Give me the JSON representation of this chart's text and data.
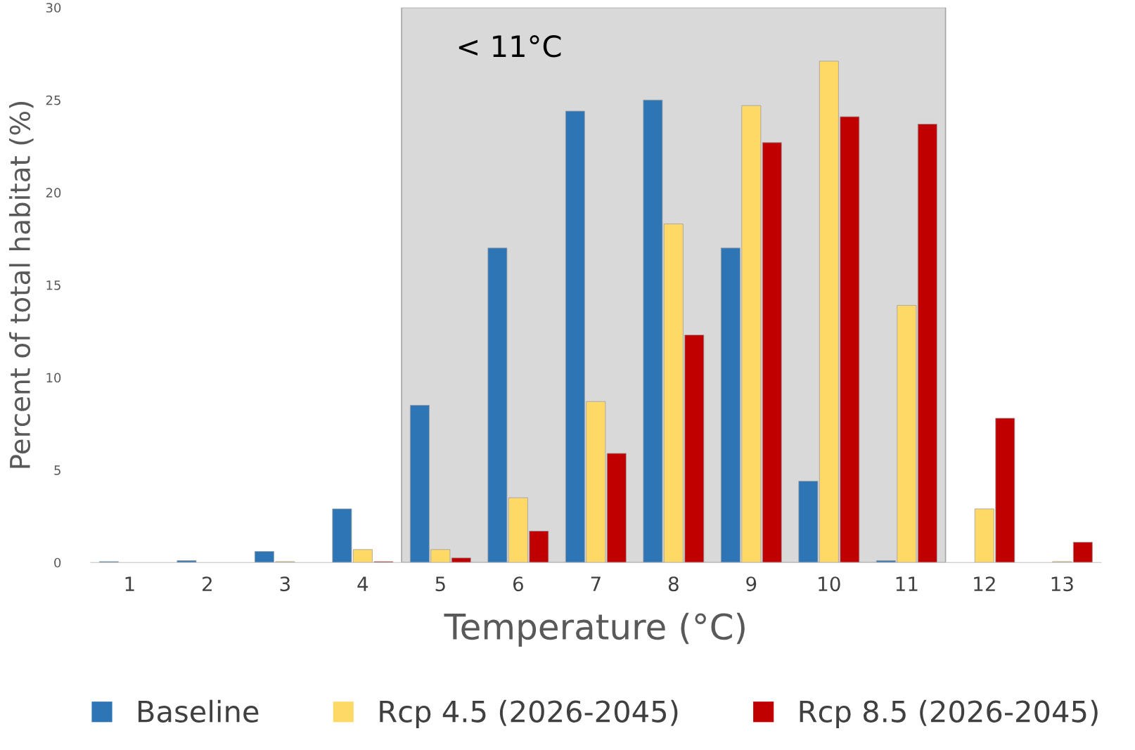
{
  "chart_data": {
    "type": "bar",
    "xlabel": "Temperature (°C)",
    "ylabel": "Percent of total habitat (%)",
    "x": [
      1,
      2,
      3,
      4,
      5,
      6,
      7,
      8,
      9,
      10,
      11,
      12,
      13
    ],
    "xlim": [
      0.5,
      13.5
    ],
    "xticks": [
      1,
      2,
      3,
      4,
      5,
      6,
      7,
      8,
      9,
      10,
      11,
      12,
      13
    ],
    "ylim": [
      0,
      30
    ],
    "yticks": [
      0,
      5,
      10,
      15,
      20,
      25,
      30
    ],
    "series": [
      {
        "name": "Baseline",
        "color": "#2e75b6",
        "values": [
          0.05,
          0.1,
          0.6,
          2.9,
          8.5,
          17.0,
          24.4,
          25.0,
          17.0,
          4.4,
          0.1,
          0,
          0
        ]
      },
      {
        "name": "Rcp 4.5 (2026-2045)",
        "color": "#ffd966",
        "values": [
          0,
          0,
          0.05,
          0.7,
          0.7,
          3.5,
          8.7,
          18.3,
          24.7,
          27.1,
          13.9,
          2.9,
          0.05
        ]
      },
      {
        "name": "Rcp 8.5 (2026-2045)",
        "color": "#c00000",
        "values": [
          0,
          0,
          0,
          0.05,
          0.25,
          1.7,
          5.9,
          12.3,
          22.7,
          24.1,
          23.7,
          7.8,
          1.1
        ]
      }
    ],
    "bands": [
      {
        "axis": "x",
        "from": 4.5,
        "to": 11.5,
        "label": "< 11°C",
        "color": "#d9d9d9"
      }
    ],
    "grid": false,
    "legend": "bottom"
  }
}
